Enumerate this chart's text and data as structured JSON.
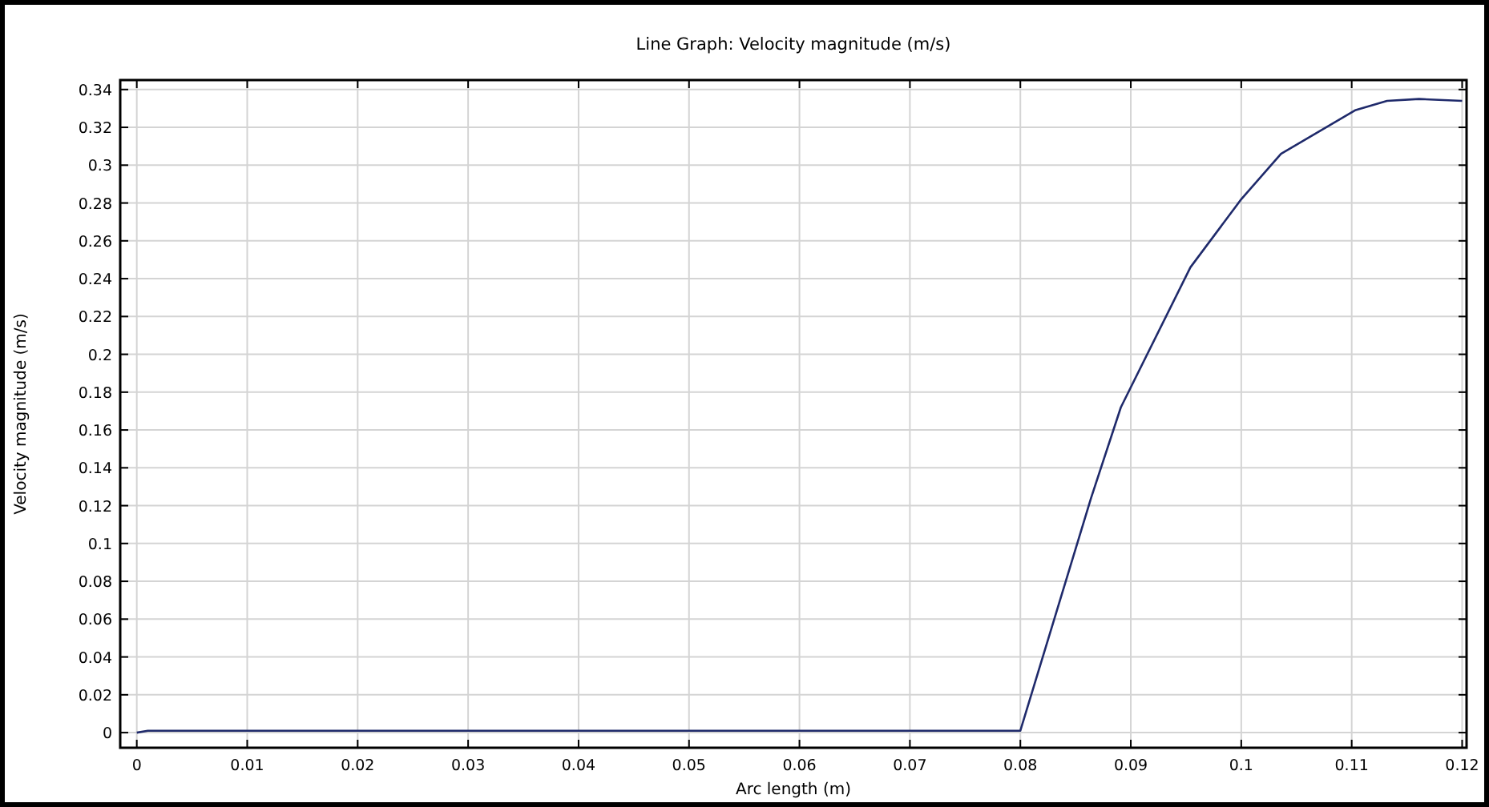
{
  "chart_data": {
    "type": "line",
    "title": "Line Graph: Velocity magnitude (m/s)",
    "xlabel": "Arc length (m)",
    "ylabel": "Velocity magnitude (m/s)",
    "series": [
      {
        "color": "#1f2a6b",
        "x": [
          0,
          0.001,
          0.08,
          0.0864,
          0.0891,
          0.0954,
          0.1,
          0.1036,
          0.1103,
          0.1132,
          0.1161,
          0.12
        ],
        "values": [
          0,
          0.001,
          0.001,
          0.124,
          0.172,
          0.246,
          0.282,
          0.306,
          0.329,
          0.334,
          0.335,
          0.334
        ]
      }
    ],
    "xlim": [
      -0.0015,
      0.1204
    ],
    "ylim": [
      -0.008,
      0.345
    ],
    "xticks": [
      0,
      0.01,
      0.02,
      0.03,
      0.04,
      0.05,
      0.06,
      0.07,
      0.08,
      0.09,
      0.1,
      0.11,
      0.12
    ],
    "yticks": [
      0,
      0.02,
      0.04,
      0.06,
      0.08,
      0.1,
      0.12,
      0.14,
      0.16,
      0.18,
      0.2,
      0.22,
      0.24,
      0.26,
      0.28,
      0.3,
      0.32,
      0.34
    ],
    "grid": true,
    "marker": "none",
    "line_style": "solid"
  }
}
